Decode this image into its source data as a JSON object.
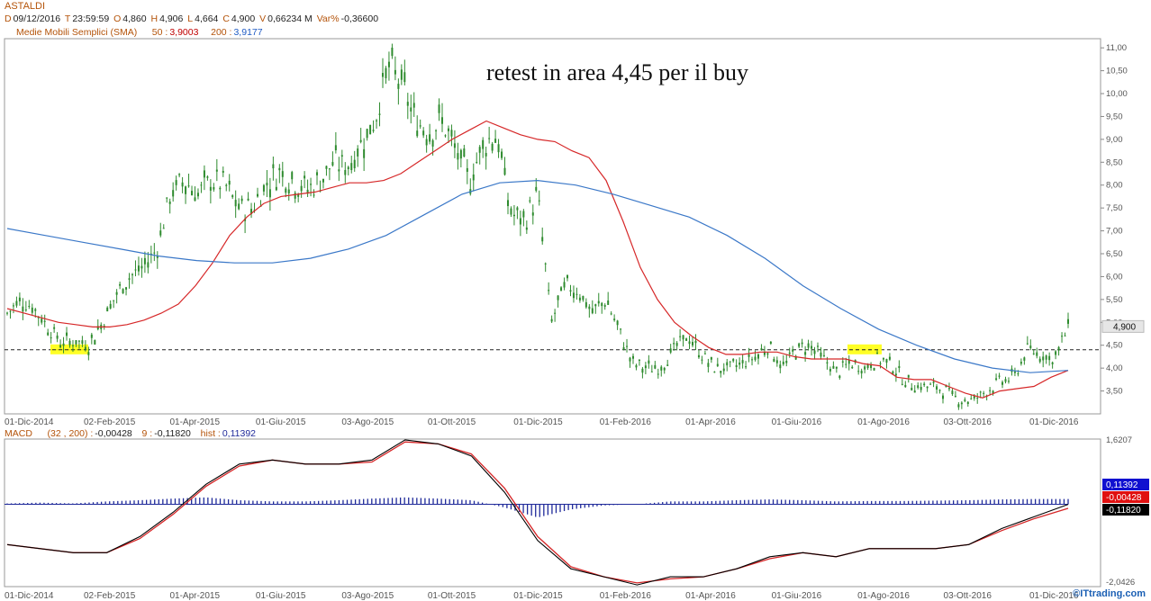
{
  "header": {
    "ticker": "ASTALDI",
    "date_key": "D",
    "date": "09/12/2016",
    "time_key": "T",
    "time": "23:59:59",
    "open_key": "O",
    "open": "4,860",
    "high_key": "H",
    "high": "4,906",
    "low_key": "L",
    "low": "4,664",
    "close_key": "C",
    "close": "4,900",
    "volume_key": "V",
    "volume": "0,66234 M",
    "var_key": "Var%",
    "var": "-0,36600",
    "sma_label": "Medie Mobili Semplici (SMA)",
    "sma50_key": "50 :",
    "sma50": "3,9003",
    "sma200_key": "200 :",
    "sma200": "3,9177"
  },
  "annotation": "retest in area 4,45 per il buy",
  "macd_header": {
    "label": "MACD",
    "params": "(32 , 200) :",
    "macd": "-0,00428",
    "signal_key": "9 :",
    "signal": "-0,11820",
    "hist_key": "hist :",
    "hist": "0,11392"
  },
  "watermark": "©ITtrading.com",
  "colors": {
    "sma50": "#d62728",
    "sma200": "#3b78c8",
    "candles": "#2e8b2e",
    "macd_line": "#000000",
    "signal_line": "#d62728",
    "hist": "#1f2a9a",
    "highlight": "#ffff00"
  },
  "chart_data": [
    {
      "type": "candlestick",
      "x_tick_labels": [
        "01-Dic-2014",
        "02-Feb-2015",
        "01-Apr-2015",
        "01-Giu-2015",
        "03-Ago-2015",
        "01-Ott-2015",
        "01-Dic-2015",
        "01-Feb-2016",
        "01-Apr-2016",
        "01-Giu-2016",
        "01-Ago-2016",
        "03-Ott-2016",
        "01-Dic-2016"
      ],
      "y_tick_labels": [
        "3,50",
        "4,00",
        "4,50",
        "5,00",
        "5,50",
        "6,00",
        "6,50",
        "7,00",
        "7,50",
        "8,00",
        "8,50",
        "9,00",
        "9,50",
        "10,00",
        "10,50",
        "11,00"
      ],
      "ylim": [
        3.0,
        11.2
      ],
      "last_price_label": "4,900",
      "support_level": 4.4,
      "price": [
        5.2,
        5.5,
        5.3,
        4.9,
        4.55,
        4.6,
        4.5,
        5.0,
        5.6,
        6.0,
        6.2,
        6.6,
        7.8,
        8.1,
        7.8,
        8.1,
        8.0,
        7.5,
        7.5,
        8.0,
        8.3,
        8.1,
        7.9,
        8.1,
        8.5,
        8.4,
        8.9,
        9.4,
        10.6,
        10.2,
        9.4,
        9.2,
        9.4,
        8.7,
        8.1,
        8.9,
        9.1,
        7.4,
        7.2,
        7.8,
        5.0,
        5.8,
        5.7,
        5.2,
        5.5,
        4.8,
        4.1,
        4.0,
        4.0,
        4.4,
        4.7,
        4.3,
        4.0,
        4.0,
        4.1,
        4.25,
        4.5,
        4.0,
        4.4,
        4.5,
        4.2,
        3.9,
        4.1,
        4.0,
        4.2,
        4.1,
        3.7,
        3.6,
        3.6,
        3.5,
        3.3,
        3.3,
        3.5,
        3.7,
        3.8,
        4.4,
        4.3,
        4.2,
        4.9
      ],
      "series": [
        {
          "name": "50",
          "values": [
            5.3,
            5.2,
            5.1,
            5.0,
            4.95,
            4.9,
            4.9,
            4.95,
            5.05,
            5.2,
            5.4,
            5.8,
            6.3,
            6.9,
            7.3,
            7.6,
            7.75,
            7.8,
            7.85,
            7.95,
            8.05,
            8.05,
            8.1,
            8.25,
            8.5,
            8.75,
            9.0,
            9.2,
            9.4,
            9.25,
            9.1,
            9.0,
            8.95,
            8.75,
            8.6,
            8.1,
            7.2,
            6.2,
            5.5,
            5.0,
            4.7,
            4.45,
            4.3,
            4.3,
            4.35,
            4.35,
            4.25,
            4.2,
            4.2,
            4.2,
            4.1,
            4.05,
            3.8,
            3.75,
            3.75,
            3.6,
            3.45,
            3.35,
            3.5,
            3.55,
            3.6,
            3.8,
            3.95
          ]
        },
        {
          "name": "200",
          "values": [
            7.05,
            6.9,
            6.75,
            6.6,
            6.45,
            6.35,
            6.3,
            6.3,
            6.4,
            6.6,
            6.9,
            7.35,
            7.8,
            8.05,
            8.1,
            8.0,
            7.8,
            7.55,
            7.3,
            6.9,
            6.4,
            5.8,
            5.3,
            4.85,
            4.5,
            4.2,
            4.0,
            3.9,
            3.95
          ]
        }
      ]
    },
    {
      "type": "macd",
      "y_tick_labels": [
        "1,6207",
        "-2,0426"
      ],
      "ylim": [
        -2.0426,
        1.6207
      ],
      "value_labels": [
        "0,11392",
        "-0,00428",
        "-0,11820"
      ],
      "series": [
        {
          "name": "MACD",
          "values": [
            -1.0,
            -1.1,
            -1.2,
            -1.2,
            -0.8,
            -0.2,
            0.5,
            1.0,
            1.1,
            1.0,
            1.0,
            1.1,
            1.6,
            1.5,
            1.2,
            0.3,
            -0.9,
            -1.6,
            -1.8,
            -2.0,
            -1.8,
            -1.8,
            -1.6,
            -1.3,
            -1.2,
            -1.3,
            -1.1,
            -1.1,
            -1.1,
            -1.0,
            -0.6,
            -0.3,
            -0.0
          ]
        },
        {
          "name": "9",
          "values": [
            -1.0,
            -1.1,
            -1.2,
            -1.2,
            -0.85,
            -0.25,
            0.45,
            0.95,
            1.1,
            1.0,
            1.0,
            1.05,
            1.55,
            1.5,
            1.25,
            0.4,
            -0.8,
            -1.55,
            -1.8,
            -1.95,
            -1.85,
            -1.8,
            -1.6,
            -1.35,
            -1.2,
            -1.3,
            -1.1,
            -1.1,
            -1.1,
            -1.0,
            -0.65,
            -0.35,
            -0.1
          ]
        },
        {
          "name": "hist",
          "values": [
            0.0,
            0.02,
            0.0,
            0.05,
            0.08,
            0.12,
            0.15,
            0.08,
            0.05,
            0.05,
            0.08,
            0.12,
            0.15,
            0.12,
            0.08,
            -0.1,
            -0.35,
            -0.15,
            -0.05,
            -0.02,
            0.05,
            0.05,
            0.08,
            0.1,
            0.08,
            0.05,
            0.06,
            0.06,
            0.07,
            0.08,
            0.1,
            0.11,
            0.11
          ]
        }
      ]
    }
  ]
}
